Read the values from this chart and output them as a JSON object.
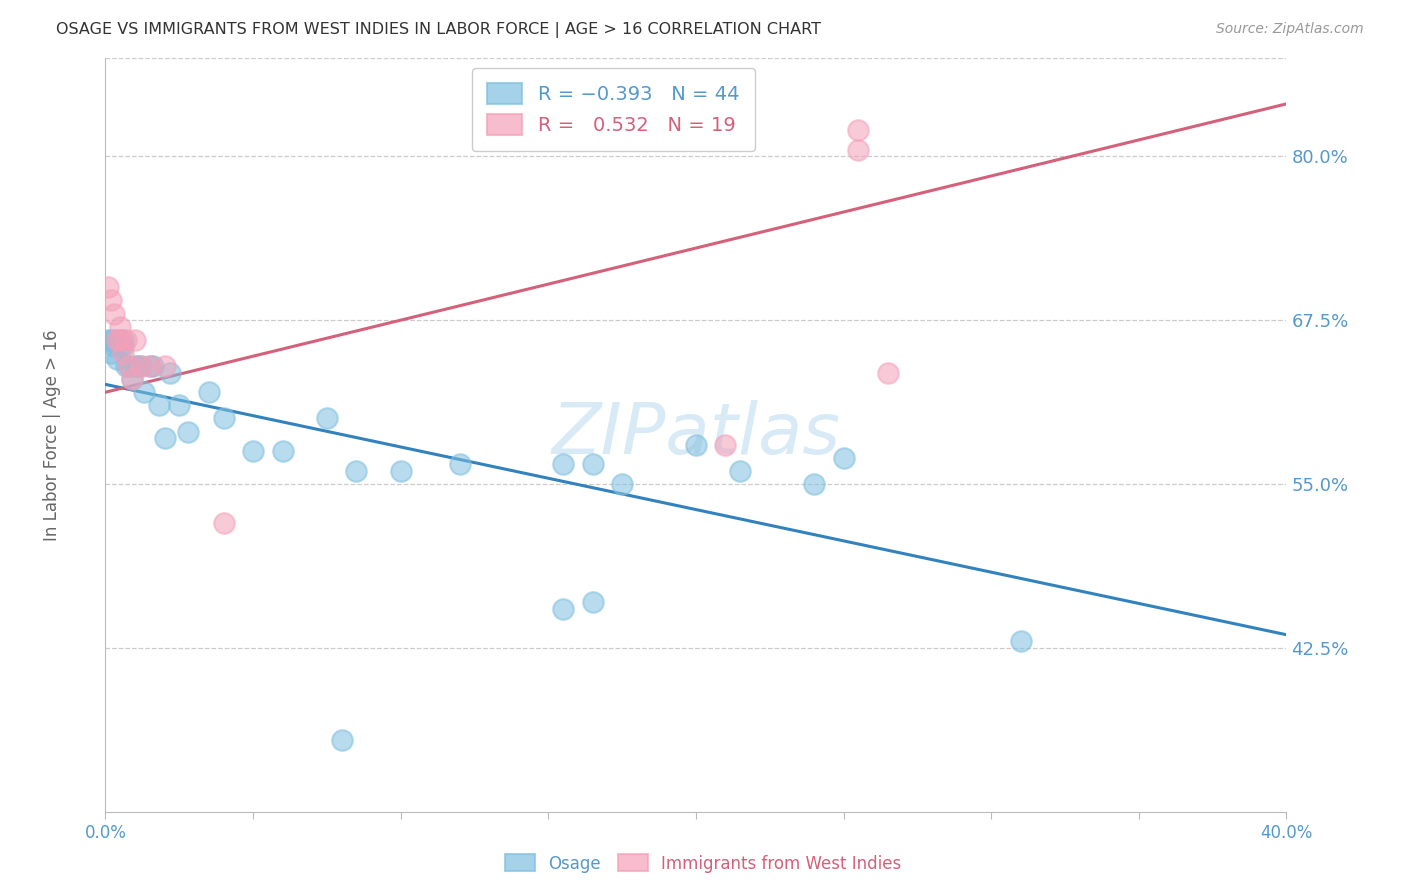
{
  "title": "OSAGE VS IMMIGRANTS FROM WEST INDIES IN LABOR FORCE | AGE > 16 CORRELATION CHART",
  "source": "Source: ZipAtlas.com",
  "ylabel": "In Labor Force | Age > 16",
  "osage_color": "#7fbfdf",
  "westindies_color": "#f4a0b8",
  "trendline_osage_color": "#3182bd",
  "trendline_westindies_color": "#d4607a",
  "watermark_color": "#d8eaf5",
  "watermark_text": "ZIPatlas",
  "R_osage": -0.393,
  "N_osage": 44,
  "R_westindies": 0.532,
  "N_westindies": 19,
  "xlim": [
    0.0,
    0.4
  ],
  "ylim": [
    0.3,
    0.875
  ],
  "yticks_right": [
    0.425,
    0.55,
    0.675,
    0.8
  ],
  "ytick_labels_right": [
    "42.5%",
    "55.0%",
    "67.5%",
    "80.0%"
  ],
  "xticks": [
    0.0,
    0.05,
    0.1,
    0.15,
    0.2,
    0.25,
    0.3,
    0.35,
    0.4
  ],
  "osage_x": [
    0.001,
    0.002,
    0.002,
    0.003,
    0.003,
    0.004,
    0.004,
    0.005,
    0.005,
    0.006,
    0.006,
    0.007,
    0.008,
    0.009,
    0.01,
    0.011,
    0.012,
    0.013,
    0.015,
    0.016,
    0.018,
    0.02,
    0.022,
    0.025,
    0.028,
    0.035,
    0.04,
    0.05,
    0.06,
    0.075,
    0.085,
    0.1,
    0.12,
    0.155,
    0.165,
    0.175,
    0.2,
    0.215,
    0.24,
    0.25,
    0.165,
    0.155,
    0.31,
    0.08
  ],
  "osage_y": [
    0.66,
    0.66,
    0.65,
    0.66,
    0.655,
    0.658,
    0.645,
    0.66,
    0.655,
    0.655,
    0.66,
    0.64,
    0.64,
    0.63,
    0.64,
    0.64,
    0.64,
    0.62,
    0.64,
    0.64,
    0.61,
    0.585,
    0.635,
    0.61,
    0.59,
    0.62,
    0.6,
    0.575,
    0.575,
    0.6,
    0.56,
    0.56,
    0.565,
    0.565,
    0.565,
    0.55,
    0.58,
    0.56,
    0.55,
    0.57,
    0.46,
    0.455,
    0.43,
    0.355
  ],
  "westindies_x": [
    0.001,
    0.002,
    0.003,
    0.004,
    0.005,
    0.005,
    0.006,
    0.007,
    0.008,
    0.009,
    0.01,
    0.012,
    0.015,
    0.02,
    0.04,
    0.21,
    0.255,
    0.255,
    0.265
  ],
  "westindies_y": [
    0.7,
    0.69,
    0.68,
    0.66,
    0.67,
    0.66,
    0.65,
    0.66,
    0.64,
    0.63,
    0.66,
    0.64,
    0.64,
    0.64,
    0.52,
    0.58,
    0.82,
    0.805,
    0.635
  ],
  "trendline_osage_x0": 0.0,
  "trendline_osage_y0": 0.626,
  "trendline_osage_x1": 0.4,
  "trendline_osage_y1": 0.435,
  "trendline_wi_x0": 0.0,
  "trendline_wi_y0": 0.62,
  "trendline_wi_x1": 0.4,
  "trendline_wi_y1": 0.84
}
